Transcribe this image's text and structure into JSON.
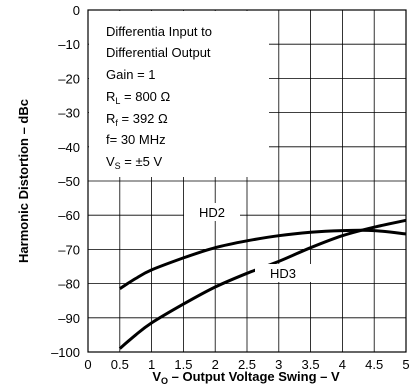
{
  "chart_data": {
    "type": "line",
    "xlabel": {
      "main": "V",
      "sub": "O",
      "rest": " – Output Voltage Swing – V"
    },
    "ylabel": "Harmonic Distortion – dBc",
    "xlim": [
      0,
      5
    ],
    "ylim": [
      -100,
      0
    ],
    "xticks": [
      "0",
      "0.5",
      "1",
      "1.5",
      "2",
      "2.5",
      "3",
      "3.5",
      "4",
      "4.5",
      "5"
    ],
    "yticks": [
      "0",
      "–10",
      "–20",
      "–30",
      "–40",
      "–50",
      "–60",
      "–70",
      "–80",
      "–90",
      "–100"
    ],
    "grid": true,
    "annotation": [
      {
        "text": "Differentia Input to"
      },
      {
        "text": "Differential Output"
      },
      {
        "text": "Gain = 1"
      },
      {
        "main": "R",
        "sub": "L",
        "rest": " = 800 Ω"
      },
      {
        "main": "R",
        "sub": "f",
        "rest": " = 392 Ω"
      },
      {
        "text": "f= 30 MHz"
      },
      {
        "main": "V",
        "sub": "S",
        "rest": " = ±5 V"
      }
    ],
    "series": [
      {
        "name": "HD2",
        "x": [
          0.5,
          0.75,
          1,
          1.5,
          2,
          2.5,
          3,
          3.5,
          4,
          4.5,
          5
        ],
        "y": [
          -81.5,
          -78.5,
          -76,
          -72.5,
          -69.5,
          -67.5,
          -66,
          -65,
          -64.5,
          -64.5,
          -65.5
        ]
      },
      {
        "name": "HD3",
        "x": [
          0.5,
          0.75,
          1,
          1.5,
          2,
          2.5,
          3,
          3.5,
          4,
          4.5,
          5
        ],
        "y": [
          -99,
          -95,
          -91.5,
          -86,
          -81,
          -77,
          -73.5,
          -69.5,
          -66,
          -63.5,
          -61.5
        ]
      }
    ]
  }
}
